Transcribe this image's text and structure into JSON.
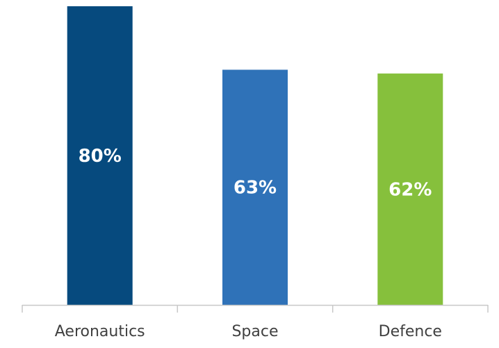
{
  "chart_data": {
    "type": "bar",
    "title": "",
    "xlabel": "",
    "ylabel": "",
    "categories": [
      "Aeronautics",
      "Space",
      "Defence"
    ],
    "values": [
      80,
      63,
      62
    ],
    "data_labels": [
      "80%",
      "63%",
      "62%"
    ],
    "unit": "%",
    "ylim": [
      0,
      80
    ],
    "grid": false,
    "legend": "none",
    "colors": [
      "#064a7e",
      "#2f72b8",
      "#86c03c"
    ],
    "axis_color": "#c8c8c8",
    "label_color": "#404040",
    "data_label_color": "#ffffff"
  }
}
